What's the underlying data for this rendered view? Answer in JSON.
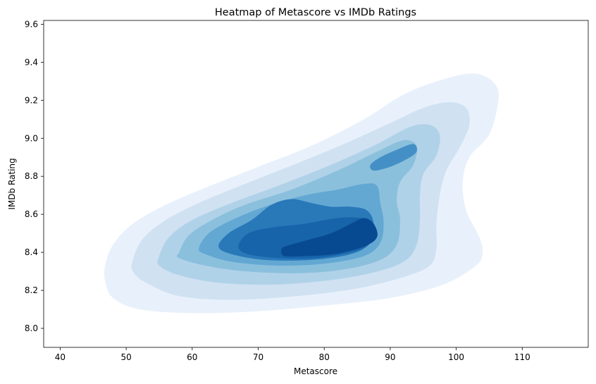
{
  "chart_data": {
    "type": "heatmap",
    "subtype": "kde-density-contour",
    "title": "Heatmap of Metascore vs IMDb Ratings",
    "xlabel": "Metascore",
    "ylabel": "IMDb Rating",
    "xlim": [
      37.5,
      120
    ],
    "ylim": [
      7.9,
      9.62
    ],
    "xticks": [
      40,
      50,
      60,
      70,
      80,
      90,
      100,
      110
    ],
    "yticks": [
      8.0,
      8.2,
      8.4,
      8.6,
      8.8,
      9.0,
      9.2,
      9.4,
      9.6
    ],
    "xtick_labels": [
      "40",
      "50",
      "60",
      "70",
      "80",
      "90",
      "100",
      "110"
    ],
    "ytick_labels": [
      "8.0",
      "8.2",
      "8.4",
      "8.6",
      "8.8",
      "9.0",
      "9.2",
      "9.4",
      "9.6"
    ],
    "grid": false,
    "legend": "none",
    "colormap": "Blues",
    "level_colors": [
      "#e8f1fb",
      "#d0e1f2",
      "#b0d2e8",
      "#8bc0dd",
      "#63a8d3",
      "#4490c6",
      "#2978b8",
      "#1764ab",
      "#084a91"
    ],
    "density_peaks": [
      {
        "metascore": 81,
        "imdb_rating": 8.45
      },
      {
        "metascore": 91,
        "imdb_rating": 8.87
      }
    ],
    "contours": [
      [
        [
          46.8,
          8.33
        ],
        [
          48,
          8.44
        ],
        [
          51,
          8.55
        ],
        [
          56,
          8.65
        ],
        [
          62,
          8.74
        ],
        [
          70,
          8.85
        ],
        [
          78,
          8.96
        ],
        [
          86,
          9.1
        ],
        [
          92,
          9.23
        ],
        [
          98,
          9.31
        ],
        [
          103,
          9.34
        ],
        [
          106,
          9.28
        ],
        [
          106.3,
          9.18
        ],
        [
          105,
          9.02
        ],
        [
          102,
          8.9
        ],
        [
          101,
          8.77
        ],
        [
          101.5,
          8.62
        ],
        [
          103.5,
          8.48
        ],
        [
          104,
          8.4
        ],
        [
          103,
          8.33
        ],
        [
          98,
          8.23
        ],
        [
          90,
          8.16
        ],
        [
          80,
          8.12
        ],
        [
          70,
          8.09
        ],
        [
          60,
          8.08
        ],
        [
          52,
          8.1
        ],
        [
          48,
          8.16
        ],
        [
          46.8,
          8.25
        ]
      ],
      [
        [
          51,
          8.36
        ],
        [
          52.5,
          8.47
        ],
        [
          56,
          8.57
        ],
        [
          61,
          8.66
        ],
        [
          68,
          8.76
        ],
        [
          76,
          8.87
        ],
        [
          83,
          8.97
        ],
        [
          90,
          9.08
        ],
        [
          95,
          9.16
        ],
        [
          99,
          9.19
        ],
        [
          101.5,
          9.16
        ],
        [
          102,
          9.07
        ],
        [
          100.5,
          8.95
        ],
        [
          98.5,
          8.83
        ],
        [
          97.5,
          8.7
        ],
        [
          97,
          8.55
        ],
        [
          97,
          8.42
        ],
        [
          96,
          8.33
        ],
        [
          92,
          8.27
        ],
        [
          85,
          8.21
        ],
        [
          76,
          8.17
        ],
        [
          66,
          8.15
        ],
        [
          58,
          8.17
        ],
        [
          53,
          8.24
        ],
        [
          51,
          8.3
        ]
      ],
      [
        [
          55,
          8.38
        ],
        [
          56.5,
          8.48
        ],
        [
          60,
          8.57
        ],
        [
          66,
          8.66
        ],
        [
          73,
          8.75
        ],
        [
          81,
          8.86
        ],
        [
          88,
          8.97
        ],
        [
          93,
          9.06
        ],
        [
          96,
          9.07
        ],
        [
          97.5,
          9.02
        ],
        [
          97,
          8.91
        ],
        [
          95,
          8.81
        ],
        [
          94.5,
          8.7
        ],
        [
          94.5,
          8.58
        ],
        [
          94,
          8.44
        ],
        [
          92,
          8.35
        ],
        [
          87,
          8.29
        ],
        [
          80,
          8.25
        ],
        [
          72,
          8.23
        ],
        [
          64,
          8.24
        ],
        [
          58,
          8.28
        ],
        [
          55,
          8.33
        ]
      ],
      [
        [
          58,
          8.4
        ],
        [
          59.5,
          8.49
        ],
        [
          63,
          8.57
        ],
        [
          68,
          8.65
        ],
        [
          75,
          8.73
        ],
        [
          82,
          8.83
        ],
        [
          88,
          8.93
        ],
        [
          92,
          8.99
        ],
        [
          94,
          8.96
        ],
        [
          93.5,
          8.86
        ],
        [
          91.5,
          8.77
        ],
        [
          91,
          8.67
        ],
        [
          91.5,
          8.57
        ],
        [
          91,
          8.44
        ],
        [
          88.5,
          8.36
        ],
        [
          83,
          8.31
        ],
        [
          76,
          8.29
        ],
        [
          68,
          8.3
        ],
        [
          62,
          8.33
        ],
        [
          58,
          8.37
        ]
      ],
      [
        [
          61,
          8.42
        ],
        [
          62.5,
          8.5
        ],
        [
          66,
          8.57
        ],
        [
          71,
          8.64
        ],
        [
          77,
          8.7
        ],
        [
          82,
          8.73
        ],
        [
          86,
          8.76
        ],
        [
          88,
          8.75
        ],
        [
          88.5,
          8.66
        ],
        [
          89,
          8.56
        ],
        [
          88.5,
          8.45
        ],
        [
          86,
          8.38
        ],
        [
          80,
          8.34
        ],
        [
          73,
          8.33
        ],
        [
          66,
          8.35
        ],
        [
          62,
          8.39
        ]
      ],
      [
        [
          87,
          8.86
        ],
        [
          88.5,
          8.9
        ],
        [
          91,
          8.94
        ],
        [
          93.5,
          8.97
        ],
        [
          94,
          8.93
        ],
        [
          92.5,
          8.89
        ],
        [
          90,
          8.85
        ],
        [
          87.5,
          8.83
        ]
      ],
      [
        [
          64,
          8.43
        ],
        [
          65.5,
          8.5
        ],
        [
          69,
          8.57
        ],
        [
          72,
          8.65
        ],
        [
          75,
          8.68
        ],
        [
          78,
          8.66
        ],
        [
          81,
          8.64
        ],
        [
          84,
          8.64
        ],
        [
          86.5,
          8.62
        ],
        [
          87.5,
          8.55
        ],
        [
          87,
          8.45
        ],
        [
          84,
          8.39
        ],
        [
          78,
          8.36
        ],
        [
          71,
          8.36
        ],
        [
          66,
          8.39
        ]
      ],
      [
        [
          67,
          8.43
        ],
        [
          68.5,
          8.5
        ],
        [
          72,
          8.53
        ],
        [
          77,
          8.55
        ],
        [
          82,
          8.58
        ],
        [
          85.5,
          8.58
        ],
        [
          87.5,
          8.55
        ],
        [
          87.5,
          8.47
        ],
        [
          85,
          8.41
        ],
        [
          79,
          8.37
        ],
        [
          73,
          8.37
        ],
        [
          68.5,
          8.39
        ]
      ],
      [
        [
          73.5,
          8.41
        ],
        [
          74,
          8.43
        ],
        [
          77,
          8.46
        ],
        [
          81,
          8.5
        ],
        [
          84,
          8.55
        ],
        [
          86,
          8.58
        ],
        [
          87.5,
          8.55
        ],
        [
          88,
          8.48
        ],
        [
          86,
          8.43
        ],
        [
          81.5,
          8.39
        ],
        [
          77,
          8.38
        ],
        [
          74,
          8.38
        ]
      ]
    ]
  }
}
